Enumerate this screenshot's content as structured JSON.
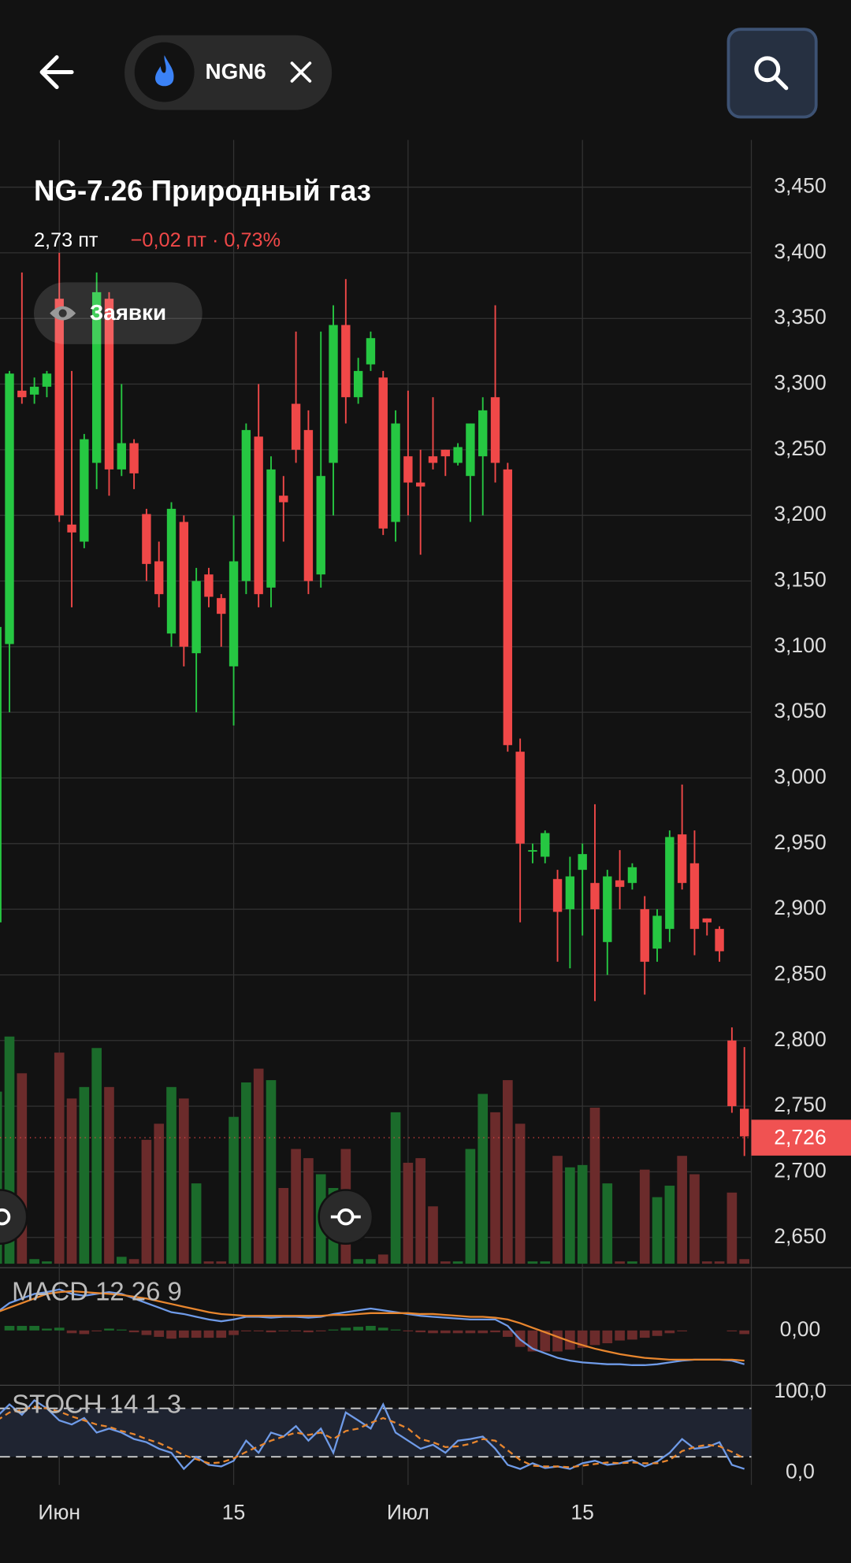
{
  "app_bar": {
    "ticker": "NGN6"
  },
  "orders_button": "Заявки",
  "chart_data": [
    {
      "type": "candlestick",
      "title": "NG-7.26 Природный газ",
      "price_text": "2,73 пт",
      "change_text": "−0,02 пт · 0,73%",
      "categories": [
        null,
        null,
        null,
        null,
        null,
        "Июн",
        null,
        null,
        null,
        null,
        null,
        null,
        null,
        null,
        null,
        null,
        null,
        null,
        null,
        "15",
        null,
        null,
        null,
        null,
        null,
        null,
        null,
        null,
        null,
        null,
        null,
        null,
        null,
        "Июл",
        null,
        null,
        null,
        null,
        null,
        null,
        null,
        null,
        null,
        null,
        null,
        null,
        null,
        "15",
        null,
        null,
        null,
        null,
        null,
        null,
        null,
        null,
        null,
        null,
        null,
        null,
        null
      ],
      "open": [
        2.89,
        3.102,
        3.295,
        3.292,
        3.298,
        3.365,
        3.193,
        3.18,
        3.24,
        3.365,
        3.235,
        3.255,
        3.201,
        3.165,
        3.11,
        3.195,
        3.095,
        3.155,
        3.137,
        3.085,
        3.15,
        3.26,
        3.145,
        3.215,
        3.285,
        3.265,
        3.155,
        3.24,
        3.345,
        3.29,
        3.315,
        3.305,
        3.195,
        3.245,
        3.225,
        3.245,
        3.25,
        3.24,
        3.23,
        3.245,
        3.29,
        3.235,
        3.02,
        2.944,
        2.94,
        2.923,
        2.9,
        2.93,
        2.92,
        2.875,
        2.922,
        2.92,
        2.9,
        2.87,
        2.885,
        2.957,
        2.935,
        2.893,
        2.885,
        2.8,
        2.748
      ],
      "high": [
        3.14,
        3.31,
        3.385,
        3.305,
        3.31,
        3.4,
        3.31,
        3.262,
        3.385,
        3.37,
        3.3,
        3.258,
        3.205,
        3.18,
        3.21,
        3.2,
        3.16,
        3.16,
        3.14,
        3.2,
        3.27,
        3.3,
        3.245,
        3.23,
        3.34,
        3.28,
        3.34,
        3.36,
        3.38,
        3.32,
        3.34,
        3.31,
        3.28,
        3.295,
        3.25,
        3.29,
        3.25,
        3.255,
        3.27,
        3.29,
        3.36,
        3.24,
        3.03,
        2.95,
        2.96,
        2.93,
        2.94,
        2.95,
        2.98,
        2.93,
        2.945,
        2.935,
        2.91,
        2.9,
        2.96,
        2.995,
        2.96,
        2.893,
        2.887,
        2.81,
        2.795
      ],
      "low": [
        2.89,
        3.05,
        3.285,
        3.285,
        3.29,
        3.195,
        3.13,
        3.175,
        3.22,
        3.215,
        3.23,
        3.22,
        3.15,
        3.13,
        3.1,
        3.085,
        3.05,
        3.13,
        3.1,
        3.04,
        3.14,
        3.13,
        3.13,
        3.18,
        3.24,
        3.14,
        3.145,
        3.2,
        3.27,
        3.285,
        3.31,
        3.185,
        3.18,
        3.2,
        3.17,
        3.235,
        3.23,
        3.238,
        3.195,
        3.2,
        3.225,
        3.02,
        2.89,
        2.935,
        2.935,
        2.86,
        2.855,
        2.88,
        2.83,
        2.85,
        2.9,
        2.915,
        2.835,
        2.86,
        2.875,
        2.915,
        2.865,
        2.88,
        2.86,
        2.745,
        2.712
      ],
      "close": [
        3.115,
        3.308,
        3.29,
        3.298,
        3.308,
        3.2,
        3.187,
        3.258,
        3.37,
        3.235,
        3.255,
        3.232,
        3.163,
        3.14,
        3.205,
        3.1,
        3.15,
        3.138,
        3.125,
        3.165,
        3.265,
        3.14,
        3.235,
        3.21,
        3.25,
        3.15,
        3.23,
        3.345,
        3.29,
        3.31,
        3.335,
        3.19,
        3.27,
        3.225,
        3.222,
        3.24,
        3.245,
        3.252,
        3.27,
        3.28,
        3.24,
        3.025,
        2.95,
        2.945,
        2.958,
        2.898,
        2.925,
        2.942,
        2.9,
        2.925,
        2.917,
        2.932,
        2.86,
        2.895,
        2.955,
        2.92,
        2.885,
        2.89,
        2.868,
        2.75,
        2.727
      ],
      "volume": [
        75,
        99,
        83,
        2,
        1,
        92,
        72,
        77,
        94,
        77,
        3,
        2,
        54,
        61,
        77,
        72,
        35,
        1,
        1,
        64,
        79,
        85,
        80,
        33,
        50,
        46,
        39,
        33,
        50,
        2,
        2,
        4,
        66,
        44,
        46,
        25,
        1,
        1,
        50,
        74,
        66,
        80,
        61,
        1,
        1,
        47,
        42,
        43,
        68,
        35,
        1,
        1,
        41,
        29,
        34,
        47,
        39,
        1,
        1,
        31,
        2
      ],
      "up_color": "#26c742",
      "down_color": "#f04848",
      "volume_up_color": "#1b6b2b",
      "volume_down_color": "#6b2b2b",
      "last_price": {
        "value": 2.726,
        "label": "2,726"
      },
      "ylim": [
        2.63,
        3.486
      ],
      "yticks": [
        {
          "value": 2.65,
          "label": "2,650"
        },
        {
          "value": 2.7,
          "label": "2,700"
        },
        {
          "value": 2.75,
          "label": "2,750"
        },
        {
          "value": 2.8,
          "label": "2,800"
        },
        {
          "value": 2.85,
          "label": "2,850"
        },
        {
          "value": 2.9,
          "label": "2,900"
        },
        {
          "value": 2.95,
          "label": "2,950"
        },
        {
          "value": 3.0,
          "label": "3,000"
        },
        {
          "value": 3.05,
          "label": "3,050"
        },
        {
          "value": 3.1,
          "label": "3,100"
        },
        {
          "value": 3.15,
          "label": "3,150"
        },
        {
          "value": 3.2,
          "label": "3,200"
        },
        {
          "value": 3.25,
          "label": "3,250"
        },
        {
          "value": 3.3,
          "label": "3,300"
        },
        {
          "value": 3.35,
          "label": "3,350"
        },
        {
          "value": 3.4,
          "label": "3,400"
        },
        {
          "value": 3.45,
          "label": "3,450"
        }
      ],
      "grid": true
    },
    {
      "type": "macd",
      "title": "MACD 12 26 9",
      "ylim": [
        -0.06,
        0.06
      ],
      "yticks": [
        {
          "value": 0,
          "label": "0,00"
        }
      ],
      "series": [
        {
          "color": "#6f9be8",
          "values": [
            0.02,
            0.03,
            0.035,
            0.04,
            0.042,
            0.045,
            0.04,
            0.038,
            0.04,
            0.042,
            0.04,
            0.035,
            0.03,
            0.025,
            0.02,
            0.018,
            0.015,
            0.012,
            0.01,
            0.012,
            0.015,
            0.015,
            0.014,
            0.015,
            0.015,
            0.014,
            0.015,
            0.018,
            0.02,
            0.022,
            0.024,
            0.022,
            0.02,
            0.018,
            0.016,
            0.015,
            0.014,
            0.013,
            0.012,
            0.012,
            0.012,
            0.005,
            -0.01,
            -0.02,
            -0.025,
            -0.03,
            -0.033,
            -0.035,
            -0.036,
            -0.037,
            -0.037,
            -0.038,
            -0.038,
            -0.037,
            -0.035,
            -0.033,
            -0.032,
            -0.032,
            -0.032,
            -0.033,
            -0.037
          ]
        },
        {
          "color": "#e8862e",
          "values": [
            0.02,
            0.025,
            0.03,
            0.035,
            0.04,
            0.042,
            0.043,
            0.042,
            0.041,
            0.04,
            0.039,
            0.037,
            0.035,
            0.032,
            0.029,
            0.026,
            0.023,
            0.02,
            0.018,
            0.017,
            0.016,
            0.016,
            0.016,
            0.016,
            0.016,
            0.016,
            0.016,
            0.017,
            0.017,
            0.018,
            0.019,
            0.019,
            0.019,
            0.019,
            0.018,
            0.018,
            0.017,
            0.016,
            0.015,
            0.015,
            0.014,
            0.012,
            0.008,
            0.003,
            -0.002,
            -0.007,
            -0.012,
            -0.016,
            -0.02,
            -0.023,
            -0.026,
            -0.028,
            -0.03,
            -0.031,
            -0.032,
            -0.032,
            -0.032,
            -0.032,
            -0.032,
            -0.032,
            -0.033
          ]
        }
      ],
      "histogram": [
        0,
        0.005,
        0.005,
        0.005,
        0.002,
        0.003,
        -0.003,
        -0.004,
        -0.001,
        0.002,
        0.001,
        -0.002,
        -0.005,
        -0.007,
        -0.009,
        -0.008,
        -0.008,
        -0.008,
        -0.008,
        -0.005,
        -0.001,
        -0.001,
        -0.002,
        -0.001,
        -0.001,
        -0.002,
        -0.001,
        0.001,
        0.003,
        0.004,
        0.005,
        0.003,
        0.001,
        -0.001,
        -0.002,
        -0.003,
        -0.003,
        -0.003,
        -0.003,
        -0.003,
        -0.002,
        -0.007,
        -0.018,
        -0.023,
        -0.023,
        -0.023,
        -0.021,
        -0.019,
        -0.016,
        -0.014,
        -0.011,
        -0.01,
        -0.008,
        -0.006,
        -0.003,
        -0.001,
        0,
        0,
        0,
        -0.001,
        -0.004
      ]
    },
    {
      "type": "stoch",
      "title": "STOCH 14 1 3",
      "ylim": [
        0,
        100
      ],
      "yticks": [
        {
          "value": 100,
          "label": "100,0"
        },
        {
          "value": 0,
          "label": "0,0"
        }
      ],
      "levels": [
        80,
        20
      ],
      "series": [
        {
          "color": "#6f9be8",
          "values": [
            70,
            85,
            72,
            90,
            80,
            65,
            60,
            68,
            50,
            55,
            50,
            42,
            38,
            30,
            25,
            5,
            20,
            10,
            8,
            15,
            40,
            25,
            50,
            45,
            58,
            40,
            55,
            25,
            75,
            65,
            55,
            85,
            50,
            40,
            30,
            35,
            25,
            40,
            42,
            45,
            30,
            10,
            5,
            12,
            6,
            8,
            5,
            12,
            15,
            10,
            12,
            16,
            8,
            14,
            25,
            42,
            30,
            32,
            38,
            10,
            5
          ]
        },
        {
          "color": "#e8862e",
          "dashed": true,
          "values": [
            65,
            75,
            78,
            82,
            80,
            76,
            70,
            65,
            60,
            57,
            52,
            48,
            42,
            37,
            30,
            22,
            17,
            12,
            13,
            18,
            26,
            33,
            40,
            45,
            50,
            47,
            50,
            42,
            52,
            55,
            62,
            68,
            62,
            55,
            42,
            38,
            32,
            33,
            36,
            42,
            40,
            28,
            16,
            9,
            8,
            8,
            7,
            9,
            11,
            13,
            12,
            13,
            12,
            12,
            16,
            27,
            32,
            35,
            33,
            26,
            18
          ]
        }
      ]
    }
  ]
}
